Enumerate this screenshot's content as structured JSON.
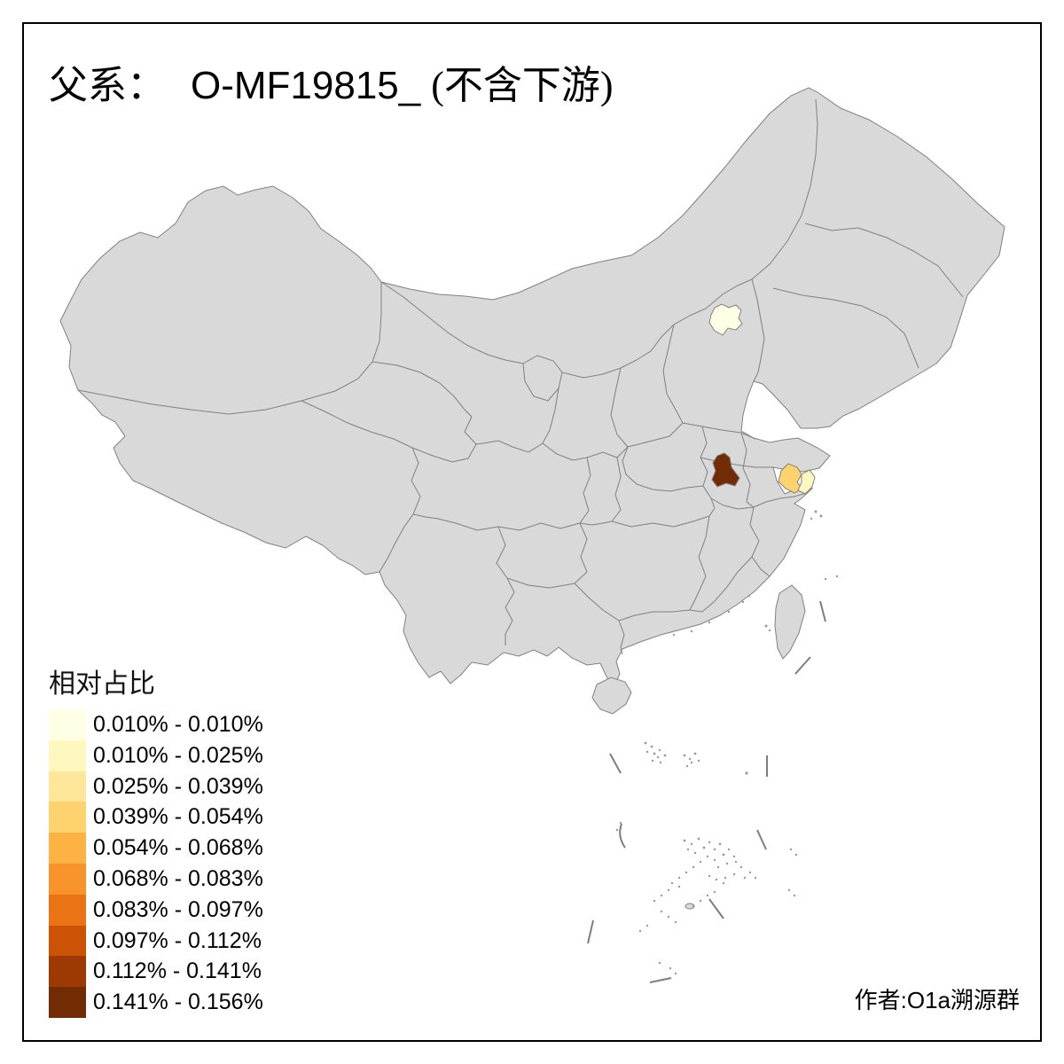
{
  "title": {
    "prefix": "父系：",
    "code": "O-MF19815_",
    "suffix": "(不含下游)"
  },
  "legend": {
    "title": "相对占比",
    "classes": [
      {
        "label": "0.010% - 0.010%",
        "color": "#FFFFE5"
      },
      {
        "label": "0.010% - 0.025%",
        "color": "#FFF7C0"
      },
      {
        "label": "0.025% - 0.039%",
        "color": "#FEE79B"
      },
      {
        "label": "0.039% - 0.054%",
        "color": "#FED36F"
      },
      {
        "label": "0.054% - 0.068%",
        "color": "#FDB244"
      },
      {
        "label": "0.068% - 0.083%",
        "color": "#F8932B"
      },
      {
        "label": "0.083% - 0.097%",
        "color": "#EA7315"
      },
      {
        "label": "0.097% - 0.112%",
        "color": "#CC5206"
      },
      {
        "label": "0.112% - 0.141%",
        "color": "#9D3A04"
      },
      {
        "label": "0.141% - 0.156%",
        "color": "#712B05"
      }
    ]
  },
  "attribution": "作者:O1a溯源群",
  "map": {
    "base_fill": "#D9D9D9",
    "border_color": "#808080",
    "frame_color": "#000000",
    "background": "#FFFFFF",
    "region_fills": [
      {
        "svg_id": "region-beijing",
        "class_index": 0
      },
      {
        "svg_id": "region-shanghai",
        "class_index": 1
      },
      {
        "svg_id": "region-south-jiangsu",
        "class_index": 3
      },
      {
        "svg_id": "region-west-anhui",
        "class_index": 9
      }
    ]
  }
}
